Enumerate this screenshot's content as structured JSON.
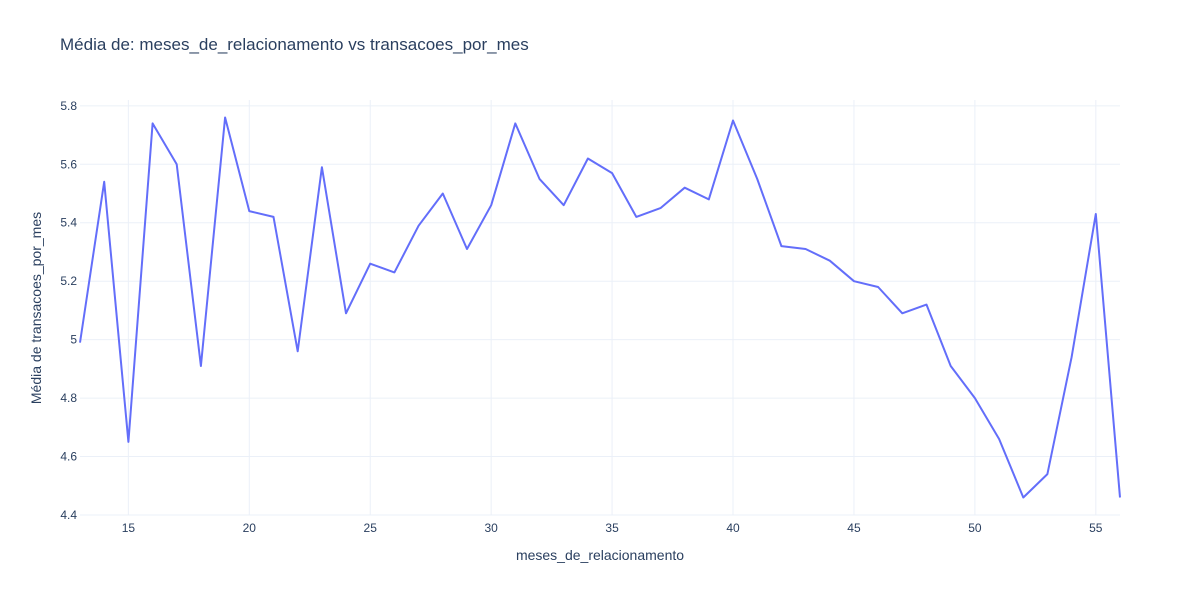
{
  "chart_data": {
    "type": "line",
    "title": "Média de: meses_de_relacionamento vs transacoes_por_mes",
    "xlabel": "meses_de_relacionamento",
    "ylabel": "Média de transacoes_por_mes",
    "xlim": [
      13,
      56
    ],
    "ylim": [
      4.4,
      5.82
    ],
    "xticks": [
      15,
      20,
      25,
      30,
      35,
      40,
      45,
      50,
      55
    ],
    "yticks": [
      4.4,
      4.6,
      4.8,
      5,
      5.2,
      5.4,
      5.6,
      5.8
    ],
    "ytick_labels": [
      "4.4",
      "4.6",
      "4.8",
      "5",
      "5.2",
      "5.4",
      "5.6",
      "5.8"
    ],
    "grid": true,
    "line_color": "#636efa",
    "series": [
      {
        "x": [
          13,
          14,
          15,
          16,
          17,
          18,
          19,
          20,
          21,
          22,
          23,
          24,
          25,
          26,
          27,
          28,
          29,
          30,
          31,
          32,
          33,
          34,
          35,
          36,
          37,
          38,
          39,
          40,
          41,
          42,
          43,
          44,
          45,
          46,
          47,
          48,
          49,
          50,
          51,
          52,
          53,
          54,
          55,
          56
        ],
        "y": [
          4.99,
          5.54,
          4.65,
          5.74,
          5.6,
          4.91,
          5.76,
          5.44,
          5.42,
          4.96,
          5.59,
          5.09,
          5.26,
          5.23,
          5.39,
          5.5,
          5.31,
          5.46,
          5.74,
          5.55,
          5.46,
          5.62,
          5.57,
          5.42,
          5.45,
          5.52,
          5.48,
          5.75,
          5.55,
          5.32,
          5.31,
          5.27,
          5.2,
          5.18,
          5.09,
          5.12,
          4.91,
          4.8,
          4.66,
          4.46,
          4.54,
          4.94,
          5.43,
          4.46
        ]
      }
    ]
  }
}
